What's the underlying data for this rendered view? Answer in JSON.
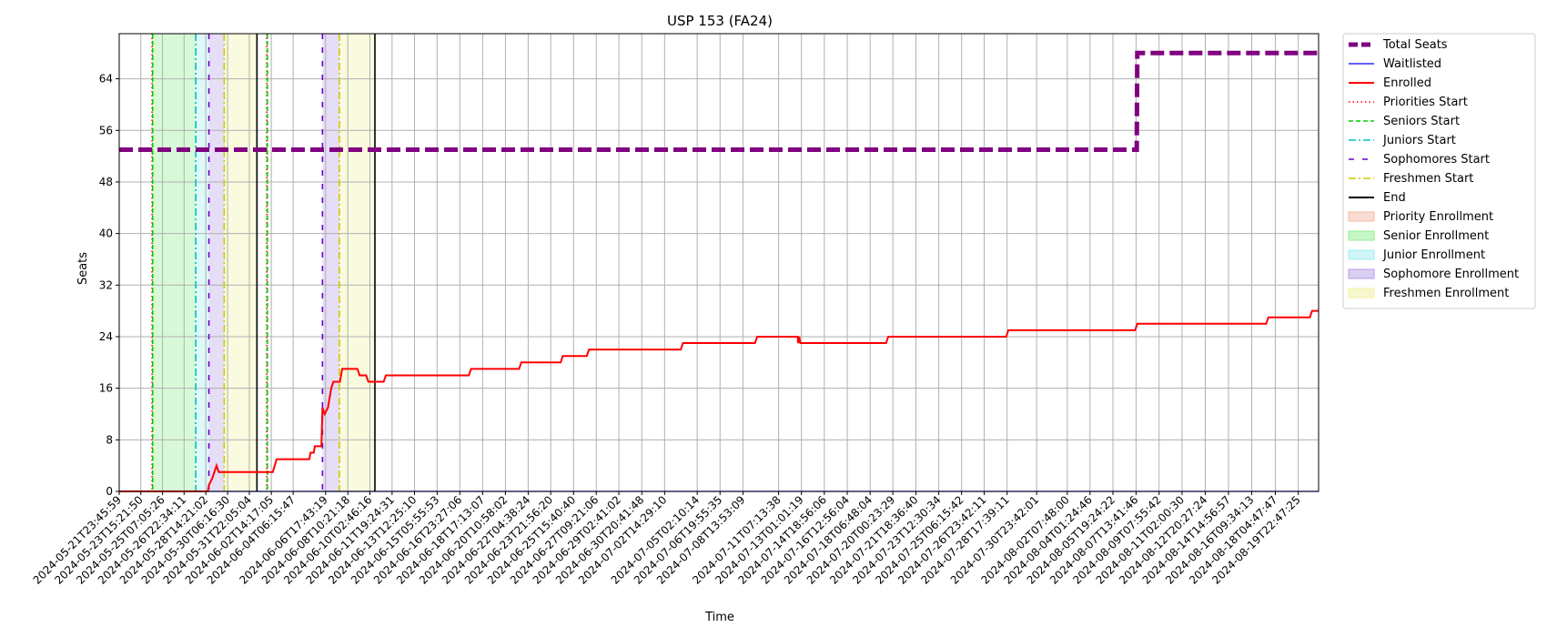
{
  "chart_data": {
    "type": "line",
    "title": "USP 153 (FA24)",
    "xlabel": "Time",
    "ylabel": "Seats",
    "grid": true,
    "legend_position": "outside-right",
    "x_start": "2024-05-21T23:45:59",
    "x_end": "2024-08-21T12:00:00",
    "ylim": [
      0,
      71
    ],
    "y_ticks": [
      0,
      8,
      16,
      24,
      32,
      40,
      48,
      56,
      64
    ],
    "x_tick_labels": [
      "2024-05-21T23:45:59",
      "2024-05-23T15:21:50",
      "2024-05-25T07:05:26",
      "2024-05-26T22:34:11",
      "2024-05-28T14:21:02",
      "2024-05-30T06:16:30",
      "2024-05-31T22:05:04",
      "2024-06-02T14:17:05",
      "2024-06-04T06:15:47",
      "2024-06-06T17:43:19",
      "2024-06-08T10:21:18",
      "2024-06-10T02:46:16",
      "2024-06-11T19:24:31",
      "2024-06-13T12:25:10",
      "2024-06-15T05:55:53",
      "2024-06-16T23:27:06",
      "2024-06-18T17:13:07",
      "2024-06-20T10:58:02",
      "2024-06-22T04:38:24",
      "2024-06-23T21:56:20",
      "2024-06-25T15:40:40",
      "2024-06-27T09:21:06",
      "2024-06-29T02:41:02",
      "2024-06-30T20:41:48",
      "2024-07-02T14:29:10",
      "2024-07-05T02:10:14",
      "2024-07-06T19:55:35",
      "2024-07-08T13:53:09",
      "2024-07-11T07:13:38",
      "2024-07-13T01:01:19",
      "2024-07-14T18:56:06",
      "2024-07-16T12:56:04",
      "2024-07-18T06:48:04",
      "2024-07-20T00:23:29",
      "2024-07-21T18:36:40",
      "2024-07-23T12:30:34",
      "2024-07-25T06:15:42",
      "2024-07-26T23:42:11",
      "2024-07-28T17:39:11",
      "2024-07-30T23:42:01",
      "2024-08-02T07:48:00",
      "2024-08-04T01:24:46",
      "2024-08-05T19:24:22",
      "2024-08-07T13:41:46",
      "2024-08-09T07:55:42",
      "2024-08-11T02:00:30",
      "2024-08-12T20:27:24",
      "2024-08-14T14:56:57",
      "2024-08-16T09:34:13",
      "2024-08-18T04:47:47",
      "2024-08-19T22:47:25"
    ],
    "series": [
      {
        "name": "Total Seats",
        "color": "#800080",
        "style": "dashed-thick",
        "points": [
          [
            "2024-05-21T23:45:59",
            53
          ],
          [
            "2024-08-07T15:00:00",
            53
          ],
          [
            "2024-08-07T16:00:00",
            68
          ],
          [
            "2024-08-21T12:00:00",
            68
          ]
        ]
      },
      {
        "name": "Waitlisted",
        "color": "#0000ff",
        "style": "solid-thin",
        "points": [
          [
            "2024-05-21T23:45:59",
            0
          ],
          [
            "2024-08-21T12:00:00",
            0
          ]
        ]
      },
      {
        "name": "Enrolled",
        "color": "#ff0000",
        "style": "solid",
        "points": [
          [
            "2024-05-21T23:45:59",
            0
          ],
          [
            "2024-05-28T18:00:00",
            0
          ],
          [
            "2024-05-28T20:00:00",
            1
          ],
          [
            "2024-05-29T02:00:00",
            2
          ],
          [
            "2024-05-29T06:00:00",
            3
          ],
          [
            "2024-05-29T10:00:00",
            4
          ],
          [
            "2024-05-29T14:00:00",
            3
          ],
          [
            "2024-06-02T17:00:00",
            3
          ],
          [
            "2024-06-03T00:00:00",
            5
          ],
          [
            "2024-06-05T12:00:00",
            5
          ],
          [
            "2024-06-05T14:00:00",
            6
          ],
          [
            "2024-06-05T20:00:00",
            6
          ],
          [
            "2024-06-05T22:00:00",
            7
          ],
          [
            "2024-06-06T10:00:00",
            7
          ],
          [
            "2024-06-06T12:00:00",
            13
          ],
          [
            "2024-06-06T16:00:00",
            12
          ],
          [
            "2024-06-06T22:00:00",
            13
          ],
          [
            "2024-06-07T04:00:00",
            16
          ],
          [
            "2024-06-07T08:00:00",
            17
          ],
          [
            "2024-06-07T20:00:00",
            17
          ],
          [
            "2024-06-08T00:00:00",
            19
          ],
          [
            "2024-06-09T04:00:00",
            19
          ],
          [
            "2024-06-09T08:00:00",
            18
          ],
          [
            "2024-06-09T20:00:00",
            18
          ],
          [
            "2024-06-10T00:00:00",
            17
          ],
          [
            "2024-06-11T04:00:00",
            17
          ],
          [
            "2024-06-11T08:00:00",
            18
          ],
          [
            "2024-06-17T16:00:00",
            18
          ],
          [
            "2024-06-17T20:00:00",
            19
          ],
          [
            "2024-06-21T12:00:00",
            19
          ],
          [
            "2024-06-21T16:00:00",
            20
          ],
          [
            "2024-06-24T16:00:00",
            20
          ],
          [
            "2024-06-24T20:00:00",
            21
          ],
          [
            "2024-06-26T16:00:00",
            21
          ],
          [
            "2024-06-26T20:00:00",
            22
          ],
          [
            "2024-07-03T20:00:00",
            22
          ],
          [
            "2024-07-04T00:00:00",
            23
          ],
          [
            "2024-07-09T12:00:00",
            23
          ],
          [
            "2024-07-09T16:00:00",
            24
          ],
          [
            "2024-07-12T18:00:00",
            24
          ],
          [
            "2024-07-12T19:00:00",
            23
          ],
          [
            "2024-07-12T21:00:00",
            24
          ],
          [
            "2024-07-12T23:00:00",
            23
          ],
          [
            "2024-07-19T12:00:00",
            23
          ],
          [
            "2024-07-19T16:00:00",
            24
          ],
          [
            "2024-07-28T16:00:00",
            24
          ],
          [
            "2024-07-28T20:00:00",
            25
          ],
          [
            "2024-08-07T12:00:00",
            25
          ],
          [
            "2024-08-07T16:00:00",
            26
          ],
          [
            "2024-08-17T12:00:00",
            26
          ],
          [
            "2024-08-17T16:00:00",
            27
          ],
          [
            "2024-08-20T20:00:00",
            27
          ],
          [
            "2024-08-21T00:00:00",
            28
          ],
          [
            "2024-08-21T12:00:00",
            28
          ]
        ]
      }
    ],
    "vertical_lines": [
      {
        "name": "Priorities Start",
        "color": "#ff0000",
        "style": "dotted",
        "x": "2024-05-24T12:00:00"
      },
      {
        "name": "Seniors Start",
        "color": "#00cc00",
        "style": "dashed",
        "x": "2024-05-24T13:00:00"
      },
      {
        "name": "Juniors Start",
        "color": "#00bfbf",
        "style": "dashdot",
        "x": "2024-05-27T20:00:00"
      },
      {
        "name": "Sophomores Start",
        "color": "#6600cc",
        "style": "loosedash",
        "x": "2024-05-28T20:00:00"
      },
      {
        "name": "Freshmen Start",
        "color": "#cccc00",
        "style": "dashdot",
        "x": "2024-05-30T00:00:00"
      },
      {
        "name": "End",
        "color": "#000000",
        "style": "solid",
        "x": "2024-06-01T12:00:00"
      },
      {
        "name": "Priorities Start",
        "color": "#ff0000",
        "style": "dotted",
        "x": "2024-06-02T06:00:00"
      },
      {
        "name": "Seniors Start",
        "color": "#00cc00",
        "style": "dashed",
        "x": "2024-06-02T07:00:00"
      },
      {
        "name": "Sophomores Start",
        "color": "#6600cc",
        "style": "loosedash",
        "x": "2024-06-06T12:00:00"
      },
      {
        "name": "Freshmen Start",
        "color": "#cccc00",
        "style": "dashdot",
        "x": "2024-06-07T19:00:00"
      },
      {
        "name": "End",
        "color": "#000000",
        "style": "solid",
        "x": "2024-06-10T12:00:00"
      }
    ],
    "shaded_regions": [
      {
        "name": "Senior Enrollment",
        "color": "#90ee90",
        "start": "2024-05-24T13:00:00",
        "end": "2024-05-27T20:00:00"
      },
      {
        "name": "Junior Enrollment",
        "color": "#a0eef0",
        "start": "2024-05-27T20:00:00",
        "end": "2024-05-28T20:00:00"
      },
      {
        "name": "Sophomore Enrollment",
        "color": "#b69ee8",
        "start": "2024-05-28T20:00:00",
        "end": "2024-05-30T00:00:00"
      },
      {
        "name": "Freshmen Enrollment",
        "color": "#f0f0a0",
        "start": "2024-05-30T00:00:00",
        "end": "2024-06-01T12:00:00"
      },
      {
        "name": "Sophomore Enrollment",
        "color": "#b69ee8",
        "start": "2024-06-06T12:00:00",
        "end": "2024-06-07T19:00:00"
      },
      {
        "name": "Freshmen Enrollment",
        "color": "#f0f0a0",
        "start": "2024-06-07T19:00:00",
        "end": "2024-06-10T12:00:00"
      }
    ],
    "legend": [
      {
        "label": "Total Seats",
        "kind": "line",
        "color": "#800080",
        "style": "dashed-thick"
      },
      {
        "label": "Waitlisted",
        "kind": "line",
        "color": "#0000ff",
        "style": "solid-thin"
      },
      {
        "label": "Enrolled",
        "kind": "line",
        "color": "#ff0000",
        "style": "solid"
      },
      {
        "label": "Priorities Start",
        "kind": "line",
        "color": "#ff0000",
        "style": "dotted"
      },
      {
        "label": "Seniors Start",
        "kind": "line",
        "color": "#00cc00",
        "style": "dashed"
      },
      {
        "label": "Juniors Start",
        "kind": "line",
        "color": "#00bfbf",
        "style": "dashdot"
      },
      {
        "label": "Sophomores Start",
        "kind": "line",
        "color": "#6600cc",
        "style": "loosedash"
      },
      {
        "label": "Freshmen Start",
        "kind": "line",
        "color": "#cccc00",
        "style": "dashdot"
      },
      {
        "label": "End",
        "kind": "line",
        "color": "#000000",
        "style": "solid"
      },
      {
        "label": "Priority Enrollment",
        "kind": "patch",
        "color": "#f4b9a4"
      },
      {
        "label": "Senior Enrollment",
        "kind": "patch",
        "color": "#90ee90"
      },
      {
        "label": "Junior Enrollment",
        "kind": "patch",
        "color": "#a0eef0"
      },
      {
        "label": "Sophomore Enrollment",
        "kind": "patch",
        "color": "#b69ee8"
      },
      {
        "label": "Freshmen Enrollment",
        "kind": "patch",
        "color": "#f0f0a0"
      }
    ]
  }
}
